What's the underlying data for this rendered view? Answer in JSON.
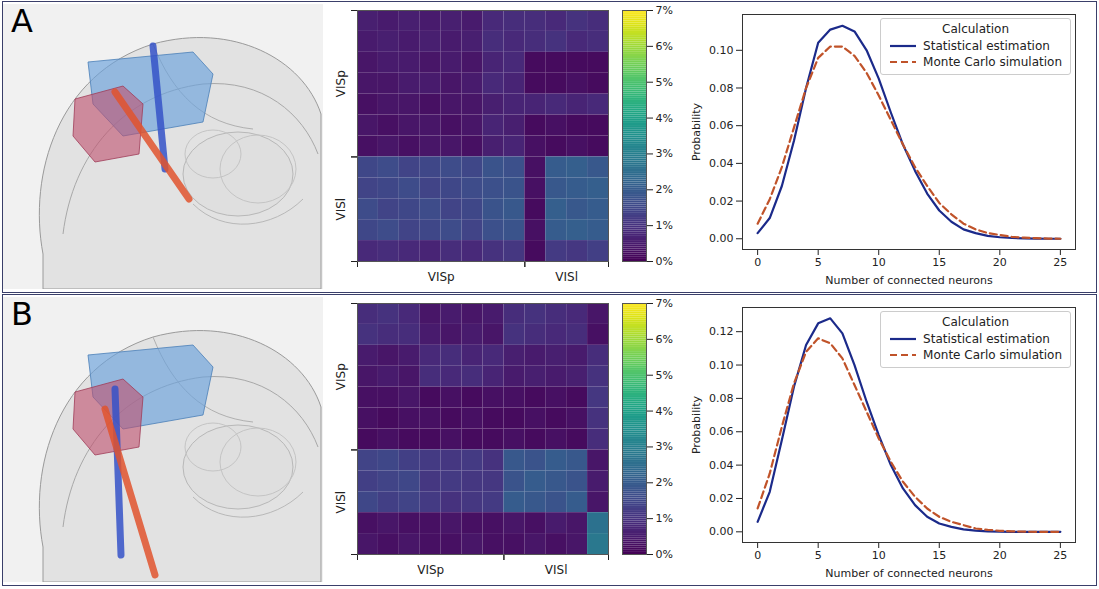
{
  "chart_data": [
    {
      "panel": "A",
      "type": "heatmap",
      "color": "viridis",
      "row_groups": [
        {
          "name": "VISp",
          "start": 0,
          "end": 7
        },
        {
          "name": "VISl",
          "start": 7,
          "end": 12
        }
      ],
      "col_groups": [
        {
          "name": "VISp",
          "start": 0,
          "end": 8
        },
        {
          "name": "VISl",
          "start": 8,
          "end": 12
        }
      ],
      "cells": [
        [
          0.6,
          0.5,
          0.6,
          0.5,
          0.6,
          0.5,
          0.8,
          0.9,
          0.9,
          0.8,
          1.0,
          0.9
        ],
        [
          0.5,
          0.6,
          0.5,
          0.6,
          0.5,
          0.6,
          0.9,
          0.8,
          0.9,
          1.0,
          0.8,
          0.9
        ],
        [
          0.4,
          0.5,
          0.5,
          0.4,
          0.5,
          0.4,
          0.7,
          0.8,
          0.2,
          0.2,
          0.2,
          0.2
        ],
        [
          0.4,
          0.4,
          0.5,
          0.5,
          0.4,
          0.5,
          0.8,
          0.7,
          0.2,
          0.2,
          0.3,
          0.2
        ],
        [
          0.3,
          0.4,
          0.4,
          0.3,
          0.4,
          0.4,
          0.6,
          0.7,
          0.7,
          0.8,
          0.7,
          0.8
        ],
        [
          0.4,
          0.3,
          0.4,
          0.4,
          0.3,
          0.4,
          0.7,
          0.6,
          0.2,
          0.3,
          0.2,
          0.2
        ],
        [
          0.3,
          0.4,
          0.3,
          0.4,
          0.4,
          0.3,
          0.6,
          0.7,
          0.3,
          0.2,
          0.3,
          0.2
        ],
        [
          1.5,
          1.6,
          1.4,
          1.5,
          1.6,
          1.5,
          1.8,
          1.7,
          0.3,
          2.0,
          2.1,
          1.9
        ],
        [
          1.4,
          1.5,
          1.6,
          1.4,
          1.5,
          1.6,
          1.7,
          1.8,
          0.3,
          1.9,
          2.0,
          2.1
        ],
        [
          1.6,
          1.4,
          1.5,
          1.6,
          1.4,
          1.5,
          1.8,
          1.9,
          0.2,
          2.1,
          1.9,
          2.0
        ],
        [
          1.5,
          1.6,
          1.4,
          1.5,
          1.6,
          1.4,
          1.7,
          1.8,
          0.3,
          2.0,
          2.1,
          2.0
        ],
        [
          0.8,
          0.9,
          0.8,
          0.7,
          0.9,
          0.8,
          1.0,
          1.1,
          0.2,
          1.2,
          1.1,
          1.3
        ]
      ],
      "colorbar": {
        "range": [
          0,
          7
        ],
        "ticks": [
          {
            "value": 0,
            "label": "0%"
          },
          {
            "value": 1,
            "label": "1%"
          },
          {
            "value": 2,
            "label": "2%"
          },
          {
            "value": 3,
            "label": "3%"
          },
          {
            "value": 4,
            "label": "4%"
          },
          {
            "value": 5,
            "label": "5%"
          },
          {
            "value": 6,
            "label": "6%"
          },
          {
            "value": 7,
            "label": "7%"
          }
        ]
      }
    },
    {
      "panel": "A",
      "type": "line",
      "xlabel": "Number of connected neurons",
      "ylabel": "Probability",
      "legend_title": "Calculation",
      "legend": "upper right",
      "x": [
        0,
        1,
        2,
        3,
        4,
        5,
        6,
        7,
        8,
        9,
        10,
        11,
        12,
        13,
        14,
        15,
        16,
        17,
        18,
        19,
        20,
        21,
        22,
        23,
        24,
        25
      ],
      "series": [
        {
          "name": "Statistical estimation",
          "color": "#1b2a8a",
          "line_style": "solid",
          "values": [
            0.003,
            0.011,
            0.028,
            0.052,
            0.08,
            0.104,
            0.111,
            0.113,
            0.11,
            0.1,
            0.085,
            0.067,
            0.05,
            0.036,
            0.024,
            0.015,
            0.009,
            0.005,
            0.003,
            0.0015,
            0.0008,
            0.0004,
            0.0002,
            0.0001,
            0,
            0
          ]
        },
        {
          "name": "Monte Carlo simulation",
          "color": "#c0532a",
          "line_style": "dashed",
          "values": [
            0.008,
            0.021,
            0.038,
            0.059,
            0.08,
            0.096,
            0.102,
            0.102,
            0.097,
            0.088,
            0.076,
            0.063,
            0.05,
            0.038,
            0.028,
            0.019,
            0.013,
            0.008,
            0.005,
            0.003,
            0.002,
            0.001,
            0.0006,
            0.0003,
            0.0001,
            0
          ]
        }
      ],
      "xlim": [
        -1.25,
        26.25
      ],
      "xticks": [
        0,
        5,
        10,
        15,
        20,
        25
      ],
      "ylim": [
        -0.0057,
        0.119
      ],
      "yticks": [
        {
          "value": 0,
          "label": "0.00"
        },
        {
          "value": 0.02,
          "label": "0.02"
        },
        {
          "value": 0.04,
          "label": "0.04"
        },
        {
          "value": 0.06,
          "label": "0.06"
        },
        {
          "value": 0.08,
          "label": "0.08"
        },
        {
          "value": 0.1,
          "label": "0.10"
        }
      ]
    },
    {
      "panel": "B",
      "type": "heatmap",
      "color": "viridis",
      "row_groups": [
        {
          "name": "VISp",
          "start": 0,
          "end": 7
        },
        {
          "name": "VISl",
          "start": 7,
          "end": 12
        }
      ],
      "col_groups": [
        {
          "name": "VISp",
          "start": 0,
          "end": 7
        },
        {
          "name": "VISl",
          "start": 7,
          "end": 12
        }
      ],
      "cells": [
        [
          0.9,
          1.0,
          0.8,
          0.4,
          0.5,
          0.4,
          0.5,
          0.9,
          1.0,
          0.9,
          0.8,
          0.4
        ],
        [
          1.0,
          0.9,
          0.9,
          0.5,
          0.4,
          0.5,
          0.4,
          1.0,
          0.9,
          0.8,
          0.9,
          0.3
        ],
        [
          0.5,
          0.4,
          0.5,
          0.8,
          0.9,
          0.7,
          0.8,
          0.6,
          0.5,
          0.6,
          0.5,
          0.9
        ],
        [
          0.4,
          0.5,
          0.4,
          0.9,
          0.8,
          0.9,
          0.7,
          0.5,
          0.6,
          0.5,
          0.6,
          1.0
        ],
        [
          0.3,
          0.3,
          0.4,
          0.2,
          0.3,
          0.2,
          0.3,
          0.3,
          0.2,
          0.3,
          0.2,
          1.1
        ],
        [
          0.3,
          0.2,
          0.3,
          0.3,
          0.2,
          0.3,
          0.2,
          0.2,
          0.3,
          0.2,
          0.3,
          1.0
        ],
        [
          0.2,
          0.3,
          0.2,
          0.2,
          0.3,
          0.2,
          0.2,
          0.3,
          0.2,
          0.3,
          0.2,
          0.9
        ],
        [
          1.4,
          1.5,
          1.3,
          1.2,
          1.1,
          1.2,
          1.0,
          1.9,
          1.8,
          2.0,
          1.9,
          0.4
        ],
        [
          1.3,
          1.4,
          1.5,
          1.1,
          1.2,
          1.1,
          1.1,
          1.8,
          2.0,
          1.9,
          1.8,
          0.5
        ],
        [
          1.5,
          1.3,
          1.4,
          1.2,
          1.0,
          1.1,
          1.2,
          2.0,
          1.9,
          1.8,
          2.0,
          0.4
        ],
        [
          0.3,
          0.4,
          0.3,
          0.3,
          0.4,
          0.3,
          0.3,
          0.4,
          0.3,
          0.5,
          0.4,
          2.6
        ],
        [
          0.4,
          0.3,
          0.4,
          0.3,
          0.3,
          0.4,
          0.3,
          0.3,
          0.4,
          0.3,
          0.4,
          2.8
        ]
      ],
      "colorbar": {
        "range": [
          0,
          7
        ],
        "ticks": [
          {
            "value": 0,
            "label": "0%"
          },
          {
            "value": 1,
            "label": "1%"
          },
          {
            "value": 2,
            "label": "2%"
          },
          {
            "value": 3,
            "label": "3%"
          },
          {
            "value": 4,
            "label": "4%"
          },
          {
            "value": 5,
            "label": "5%"
          },
          {
            "value": 6,
            "label": "6%"
          },
          {
            "value": 7,
            "label": "7%"
          }
        ]
      }
    },
    {
      "panel": "B",
      "type": "line",
      "xlabel": "Number of connected neurons",
      "ylabel": "Probability",
      "legend_title": "Calculation",
      "legend": "upper right",
      "x": [
        0,
        1,
        2,
        3,
        4,
        5,
        6,
        7,
        8,
        9,
        10,
        11,
        12,
        13,
        14,
        15,
        16,
        17,
        18,
        19,
        20,
        21,
        22,
        23,
        24,
        25
      ],
      "series": [
        {
          "name": "Statistical estimation",
          "color": "#1b2a8a",
          "line_style": "solid",
          "values": [
            0.006,
            0.024,
            0.055,
            0.087,
            0.112,
            0.125,
            0.128,
            0.119,
            0.1,
            0.078,
            0.058,
            0.04,
            0.026,
            0.016,
            0.009,
            0.005,
            0.003,
            0.0015,
            0.0007,
            0.0003,
            0.0001,
            0,
            0,
            0,
            0,
            0
          ]
        },
        {
          "name": "Monte Carlo simulation",
          "color": "#c0532a",
          "line_style": "dashed",
          "values": [
            0.014,
            0.035,
            0.063,
            0.089,
            0.108,
            0.116,
            0.113,
            0.104,
            0.088,
            0.072,
            0.056,
            0.042,
            0.03,
            0.021,
            0.014,
            0.009,
            0.006,
            0.004,
            0.002,
            0.0012,
            0.0006,
            0.0003,
            0.0001,
            0,
            0,
            0
          ]
        }
      ],
      "xlim": [
        -1.25,
        26.25
      ],
      "xticks": [
        0,
        5,
        10,
        15,
        20,
        25
      ],
      "ylim": [
        -0.0064,
        0.1345
      ],
      "yticks": [
        {
          "value": 0,
          "label": "0.00"
        },
        {
          "value": 0.02,
          "label": "0.02"
        },
        {
          "value": 0.04,
          "label": "0.04"
        },
        {
          "value": 0.06,
          "label": "0.06"
        },
        {
          "value": 0.08,
          "label": "0.08"
        },
        {
          "value": 0.1,
          "label": "0.10"
        },
        {
          "value": 0.12,
          "label": "0.12"
        }
      ]
    }
  ]
}
